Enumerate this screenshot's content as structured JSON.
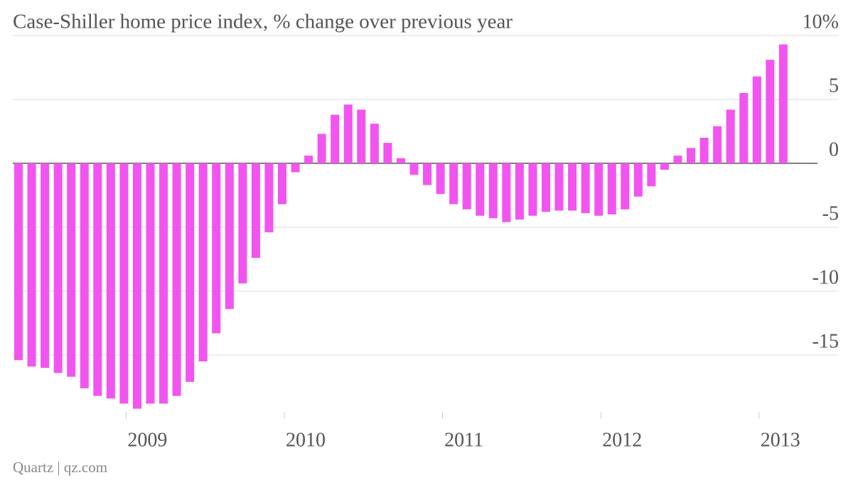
{
  "chart_data": {
    "type": "bar",
    "title": "Case-Shiller home price index, % change over previous year",
    "source": "Quartz | qz.com",
    "categories": [
      null,
      null,
      null,
      null,
      null,
      null,
      null,
      null,
      "2009",
      null,
      null,
      null,
      null,
      null,
      null,
      null,
      null,
      null,
      null,
      null,
      "2010",
      null,
      null,
      null,
      null,
      null,
      null,
      null,
      null,
      null,
      null,
      null,
      "2011",
      null,
      null,
      null,
      null,
      null,
      null,
      null,
      null,
      null,
      null,
      null,
      "2012",
      null,
      null,
      null,
      null,
      null,
      null,
      null,
      null,
      null,
      null,
      null,
      "2013",
      null,
      null
    ],
    "values": [
      -15.4,
      -15.9,
      -16.0,
      -16.4,
      -16.7,
      -17.6,
      -18.2,
      -18.4,
      -18.8,
      -19.2,
      -18.8,
      -18.8,
      -18.2,
      -17.1,
      -15.5,
      -13.3,
      -11.4,
      -9.4,
      -7.4,
      -5.4,
      -3.2,
      -0.7,
      0.6,
      2.3,
      3.8,
      4.6,
      4.2,
      3.1,
      1.6,
      0.4,
      -0.9,
      -1.7,
      -2.4,
      -3.2,
      -3.6,
      -4.1,
      -4.3,
      -4.6,
      -4.4,
      -4.1,
      -3.8,
      -3.7,
      -3.7,
      -3.9,
      -4.1,
      -4.0,
      -3.6,
      -2.6,
      -1.8,
      -0.5,
      0.6,
      1.2,
      2.0,
      2.9,
      4.2,
      5.5,
      6.8,
      8.1,
      9.3
    ],
    "color": "#f255ef",
    "ylim": [
      -20,
      10
    ],
    "yticks": [
      -15,
      -10,
      -5,
      0,
      5,
      {
        "value": 10,
        "label": "10%"
      }
    ],
    "grid": true
  }
}
